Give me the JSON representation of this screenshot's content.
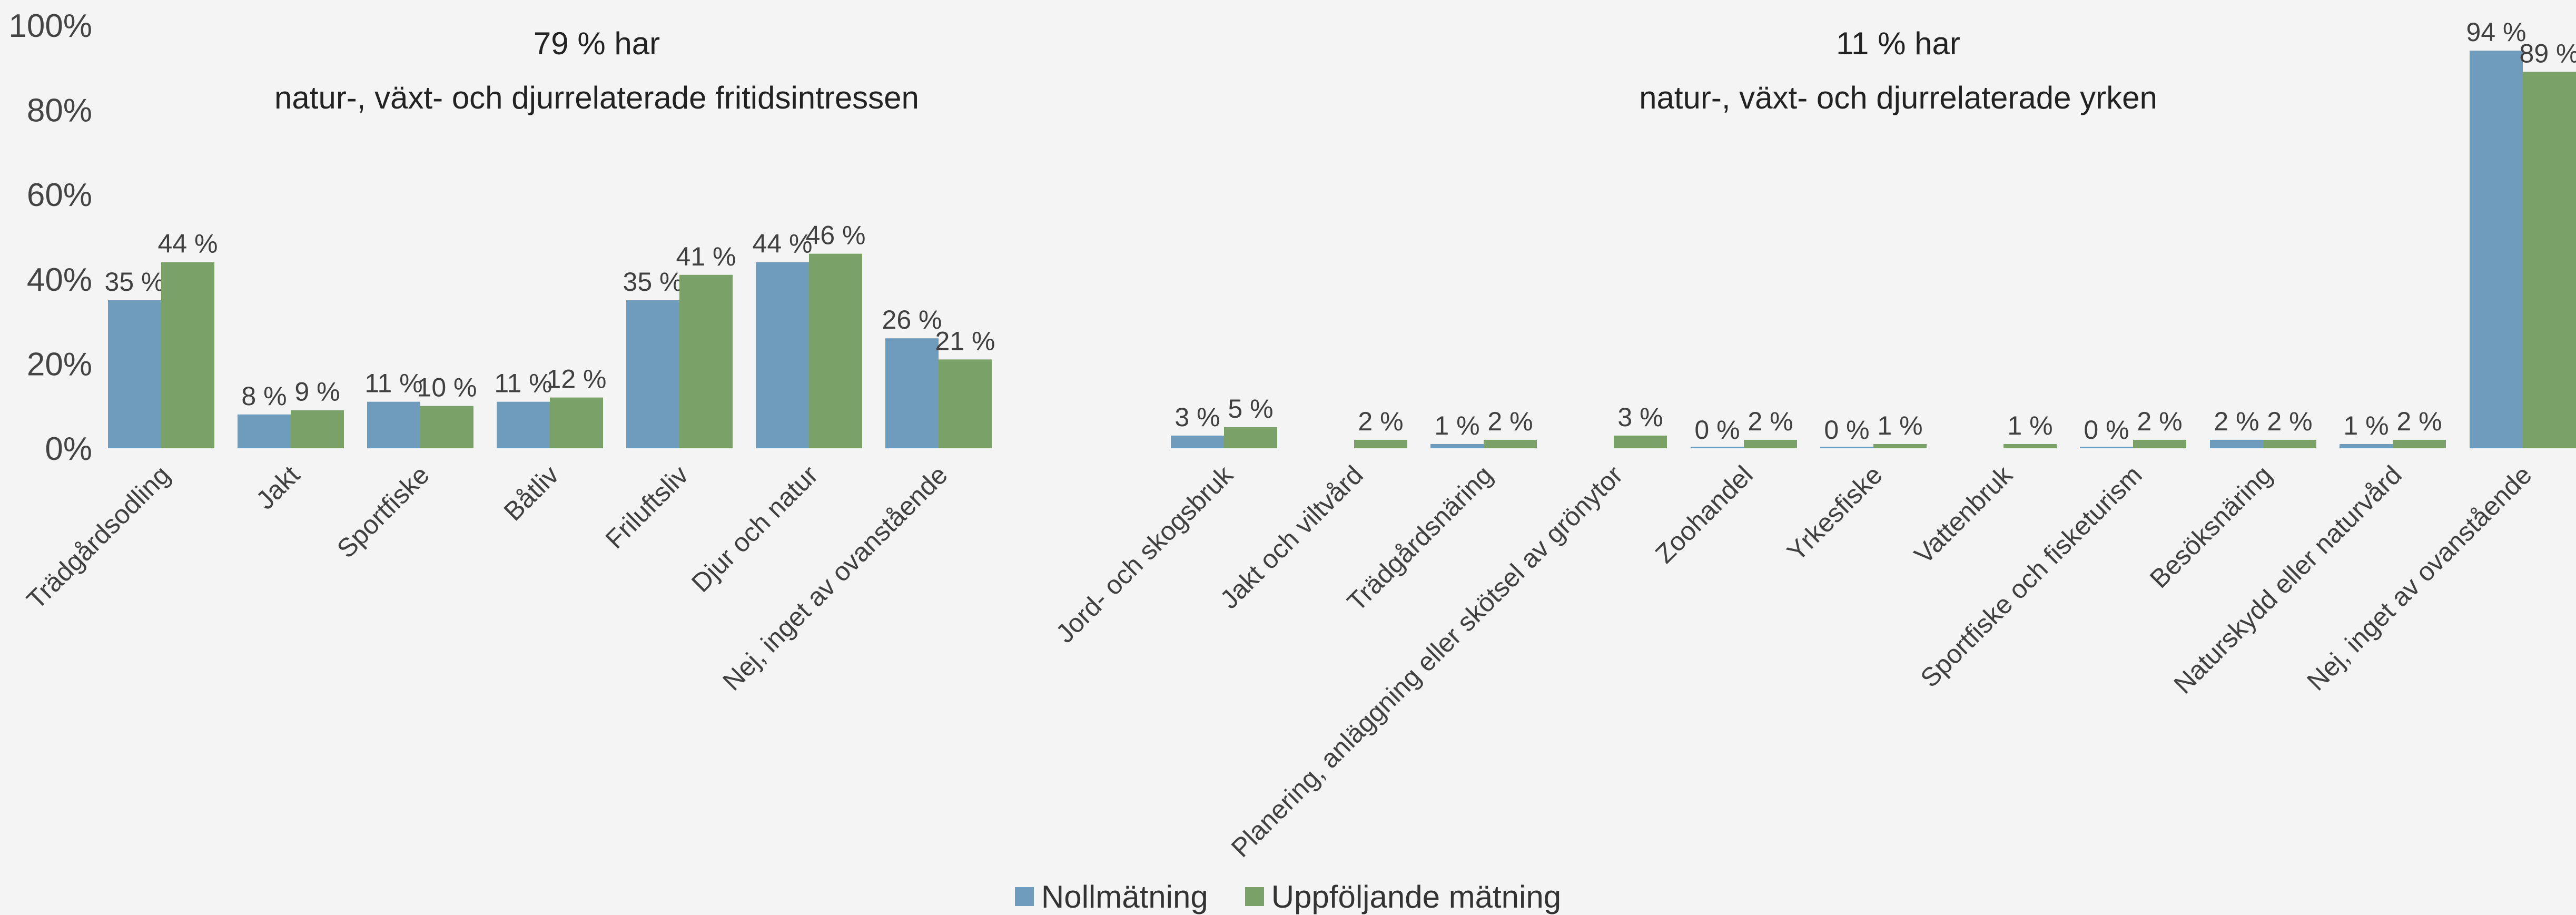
{
  "chart_data": {
    "type": "bar",
    "title": "",
    "xlabel": "",
    "ylabel": "",
    "ylim": [
      0,
      100
    ],
    "y_ticks": [
      "0%",
      "20%",
      "40%",
      "60%",
      "80%",
      "100%"
    ],
    "grid": false,
    "legend_position": "bottom-center",
    "value_suffix": " %",
    "colors": {
      "Nollmätning": "#6f9bbd",
      "Uppföljande mätning": "#7aa167"
    },
    "groups": [
      {
        "heading_line1": "79 % har",
        "heading_line2": "natur-, växt- och djurrelaterade fritidsintressen",
        "categories": [
          "Trädgårdsodling",
          "Jakt",
          "Sportfiske",
          "Båtliv",
          "Friluftsliv",
          "Djur och natur",
          "Nej, inget av ovanstående"
        ],
        "series": [
          {
            "name": "Nollmätning",
            "values": [
              35,
              8,
              11,
              11,
              35,
              44,
              26
            ]
          },
          {
            "name": "Uppföljande mätning",
            "values": [
              44,
              9,
              10,
              12,
              41,
              46,
              21
            ]
          }
        ]
      },
      {
        "heading_line1": "11 % har",
        "heading_line2": "natur-, växt- och djurrelaterade yrken",
        "categories": [
          "Jord- och skogsbruk",
          "Jakt och viltvård",
          "Trädgårdsnäring",
          "Planering, anläggning eller skötsel av grönytor",
          "Zoohandel",
          "Yrkesfiske",
          "Vattenbruk",
          "Sportfiske och fisketurism",
          "Besöksnäring",
          "Naturskydd eller naturvård",
          "Nej, inget av ovanstående"
        ],
        "series": [
          {
            "name": "Nollmätning",
            "values": [
              3,
              null,
              1,
              null,
              0,
              0,
              null,
              0,
              2,
              1,
              94
            ]
          },
          {
            "name": "Uppföljande mätning",
            "values": [
              5,
              2,
              2,
              3,
              2,
              1,
              1,
              2,
              2,
              2,
              89
            ]
          }
        ]
      }
    ],
    "legend": [
      "Nollmätning",
      "Uppföljande mätning"
    ]
  }
}
